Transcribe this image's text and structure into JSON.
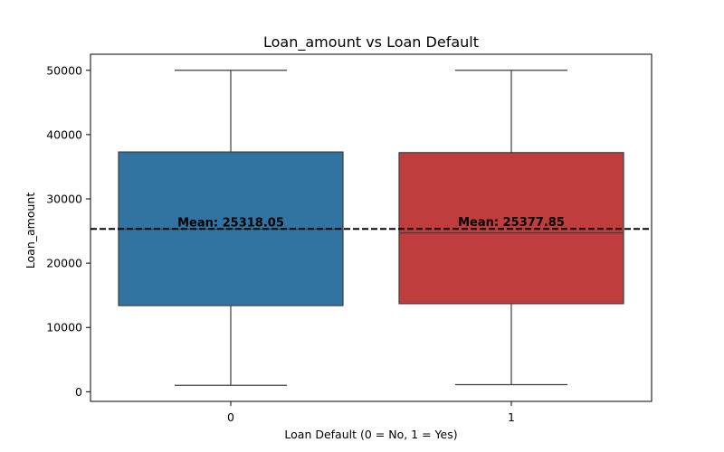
{
  "chart_data": {
    "type": "box",
    "title": "Loan_amount vs Loan Default",
    "xlabel": "Loan Default (0 = No, 1 = Yes)",
    "ylabel": "Loan_amount",
    "categories": [
      "0",
      "1"
    ],
    "ylim": [
      -1500,
      52500
    ],
    "yticks": [
      0,
      10000,
      20000,
      30000,
      40000,
      50000
    ],
    "boxes": [
      {
        "category": "0",
        "min": 1000,
        "q1": 13400,
        "median": 25300,
        "q3": 37300,
        "max": 50000,
        "mean": 25318.05,
        "color": "#3274a1"
      },
      {
        "category": "1",
        "min": 1100,
        "q1": 13700,
        "median": 24700,
        "q3": 37200,
        "max": 50000,
        "mean": 25377.85,
        "color": "#c03d3e"
      }
    ],
    "mean_labels": [
      "Mean: 25318.05",
      "Mean: 25377.85"
    ],
    "reference_line": {
      "value": 25318.05,
      "style": "dashed",
      "color": "#000000"
    },
    "grid": false
  }
}
